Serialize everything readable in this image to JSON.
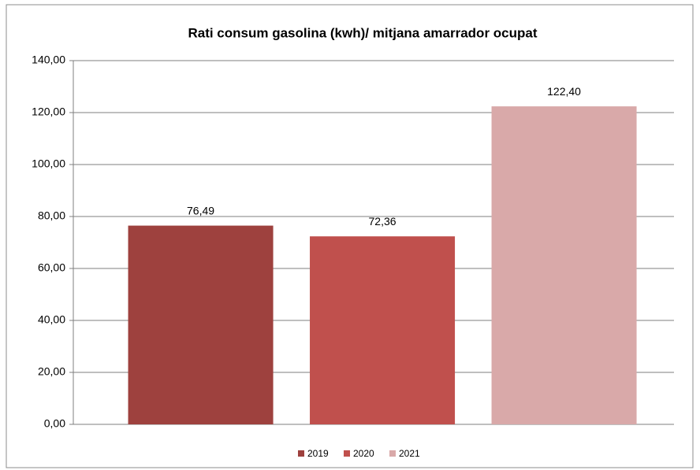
{
  "chart_data": {
    "type": "bar",
    "title": "Rati consum gasolina (kwh)/ mitjana amarrador ocupat",
    "series": [
      {
        "name": "2019",
        "color": "#9e413e",
        "values": [
          76.49
        ],
        "value_labels": [
          "76,49"
        ]
      },
      {
        "name": "2020",
        "color": "#c0504d",
        "values": [
          72.36
        ],
        "value_labels": [
          "72,36"
        ]
      },
      {
        "name": "2021",
        "color": "#d9a9a9",
        "values": [
          122.4
        ],
        "value_labels": [
          "122,40"
        ]
      }
    ],
    "ylim": [
      0,
      140
    ],
    "yticks": [
      {
        "value": 0,
        "label": "0,00"
      },
      {
        "value": 20,
        "label": "20,00"
      },
      {
        "value": 40,
        "label": "40,00"
      },
      {
        "value": 60,
        "label": "60,00"
      },
      {
        "value": 80,
        "label": "80,00"
      },
      {
        "value": 100,
        "label": "100,00"
      },
      {
        "value": 120,
        "label": "120,00"
      },
      {
        "value": 140,
        "label": "140,00"
      }
    ],
    "grid": true,
    "legend": "bottom"
  }
}
